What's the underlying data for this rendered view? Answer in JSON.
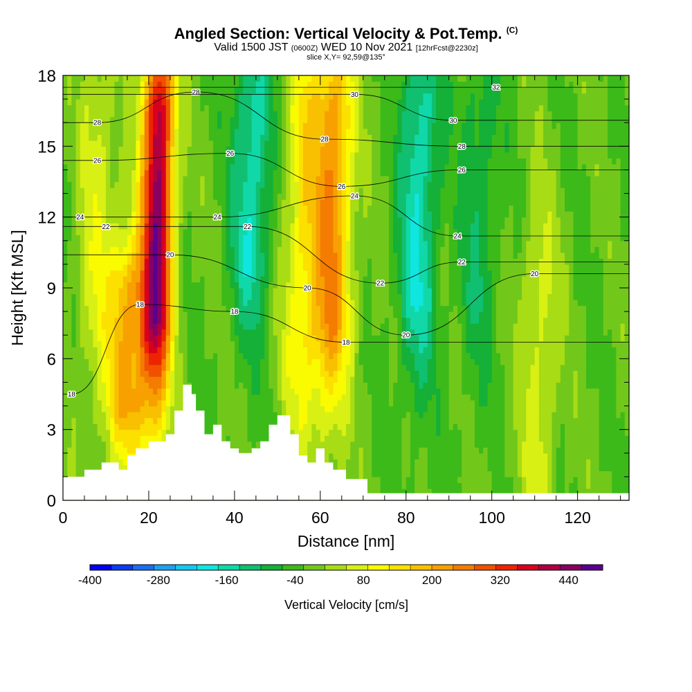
{
  "header": {
    "title": "Angled Section: Vertical Velocity & Pot.Temp.",
    "title_mark": "(C)",
    "valid_a": "Valid 1500 JST",
    "valid_z": "(0600Z)",
    "valid_b": "WED 10 Nov 2021",
    "valid_fcst": "[12hrFcst@2230z]",
    "slice": "slice X,Y= 92,59@135°"
  },
  "chart_data": {
    "type": "heatmap",
    "title": "Angled Section: Vertical Velocity & Pot.Temp.",
    "xlabel": "Distance [nm]",
    "ylabel": "Height [Kft MSL]",
    "xlim": [
      0,
      132
    ],
    "ylim": [
      0,
      18
    ],
    "x_ticks": [
      "0",
      "20",
      "40",
      "60",
      "80",
      "100",
      "120"
    ],
    "y_ticks": [
      "0",
      "3",
      "6",
      "9",
      "12",
      "15",
      "18"
    ],
    "fill_variable": "Vertical Velocity [cm/s]",
    "colorbar": {
      "label": "Vertical Velocity [cm/s]",
      "ticks": [
        "-400",
        "-280",
        "-160",
        "-40",
        "80",
        "200",
        "320",
        "440"
      ],
      "min": -400,
      "max": 500,
      "step": 40,
      "colors": [
        "#0000ee",
        "#0a3cf0",
        "#1a6ef0",
        "#1ea0f0",
        "#14c8f0",
        "#10e6e0",
        "#10d8a8",
        "#10c070",
        "#14b038",
        "#3cba1a",
        "#72c81a",
        "#a8dc14",
        "#d8f014",
        "#fafa00",
        "#fce000",
        "#f8c000",
        "#f8a000",
        "#f47c00",
        "#f05000",
        "#ee2400",
        "#d8001e",
        "#b00040",
        "#880060",
        "#5a0090"
      ]
    },
    "fill_hints": {
      "updraft_cores": [
        {
          "x": 22,
          "y_range": [
            6,
            18
          ],
          "peak_cm_s": 480
        },
        {
          "x": 15,
          "y_range": [
            3,
            10
          ],
          "peak_cm_s": 230
        },
        {
          "x": 63,
          "y_range": [
            6,
            18
          ],
          "peak_cm_s": 260
        },
        {
          "x": 56,
          "y_range": [
            5,
            18
          ],
          "peak_cm_s": 150
        },
        {
          "x": 8,
          "y_range": [
            6,
            18
          ],
          "peak_cm_s": 90
        },
        {
          "x": 111,
          "y_range": [
            0,
            11
          ],
          "peak_cm_s": 90
        }
      ],
      "downdraft_cores": [
        {
          "x": 44,
          "y_range": [
            9,
            18
          ],
          "peak_cm_s": -160
        },
        {
          "x": 83,
          "y_range": [
            7,
            18
          ],
          "peak_cm_s": -160
        },
        {
          "x": 97,
          "y_range": [
            7,
            18
          ],
          "peak_cm_s": -80
        }
      ]
    },
    "contour_variable": "Potential Temperature (C)",
    "contour_levels": [
      {
        "theta": 18,
        "label_at": [
          [
            2,
            4.5
          ],
          [
            18,
            8.3
          ],
          [
            40,
            8.0
          ],
          [
            66,
            6.7
          ]
        ]
      },
      {
        "theta": 20,
        "label_at": [
          [
            25,
            10.4
          ],
          [
            57,
            9.0
          ],
          [
            80,
            7.0
          ],
          [
            110,
            9.6
          ]
        ]
      },
      {
        "theta": 22,
        "label_at": [
          [
            10,
            11.6
          ],
          [
            43,
            11.6
          ],
          [
            74,
            9.2
          ],
          [
            93,
            10.1
          ]
        ]
      },
      {
        "theta": 24,
        "label_at": [
          [
            4,
            12.0
          ],
          [
            36,
            12.0
          ],
          [
            68,
            12.9
          ],
          [
            92,
            11.2
          ]
        ]
      },
      {
        "theta": 26,
        "label_at": [
          [
            8,
            14.4
          ],
          [
            39,
            14.7
          ],
          [
            65,
            13.3
          ],
          [
            93,
            14.0
          ]
        ]
      },
      {
        "theta": 28,
        "label_at": [
          [
            8,
            16.0
          ],
          [
            31,
            17.3
          ],
          [
            61,
            15.3
          ],
          [
            93,
            15.0
          ]
        ]
      },
      {
        "theta": 30,
        "label_at": [
          [
            68,
            17.2
          ],
          [
            91,
            16.1
          ]
        ]
      },
      {
        "theta": 32,
        "label_at": [
          [
            101,
            17.5
          ]
        ]
      }
    ],
    "terrain_outline": [
      [
        0,
        1
      ],
      [
        5,
        1
      ],
      [
        5,
        1.3
      ],
      [
        9,
        1.3
      ],
      [
        9,
        1.6
      ],
      [
        13,
        1.6
      ],
      [
        13,
        1.3
      ],
      [
        15,
        1.3
      ],
      [
        15,
        1.9
      ],
      [
        17,
        1.9
      ],
      [
        17,
        2.2
      ],
      [
        20,
        2.2
      ],
      [
        20,
        2.5
      ],
      [
        24,
        2.5
      ],
      [
        24,
        2.8
      ],
      [
        26,
        2.8
      ],
      [
        26,
        3.8
      ],
      [
        28,
        3.8
      ],
      [
        28,
        4.9
      ],
      [
        30,
        4.9
      ],
      [
        30,
        4.5
      ],
      [
        31,
        4.5
      ],
      [
        31,
        3.8
      ],
      [
        33,
        3.8
      ],
      [
        33,
        2.8
      ],
      [
        35,
        2.8
      ],
      [
        35,
        3.2
      ],
      [
        37,
        3.2
      ],
      [
        37,
        2.5
      ],
      [
        39,
        2.5
      ],
      [
        39,
        2.2
      ],
      [
        41,
        2.2
      ],
      [
        41,
        2.0
      ],
      [
        44,
        2.0
      ],
      [
        44,
        2.2
      ],
      [
        46,
        2.2
      ],
      [
        46,
        2.5
      ],
      [
        48,
        2.5
      ],
      [
        48,
        3.2
      ],
      [
        50,
        3.2
      ],
      [
        50,
        3.6
      ],
      [
        53,
        3.6
      ],
      [
        53,
        2.8
      ],
      [
        55,
        2.8
      ],
      [
        55,
        1.9
      ],
      [
        57,
        1.9
      ],
      [
        57,
        1.6
      ],
      [
        59,
        1.6
      ],
      [
        59,
        2.2
      ],
      [
        61,
        2.2
      ],
      [
        61,
        1.6
      ],
      [
        63,
        1.6
      ],
      [
        63,
        1.3
      ],
      [
        66,
        1.3
      ],
      [
        66,
        0.9
      ],
      [
        71,
        0.9
      ],
      [
        71,
        0.3
      ],
      [
        132,
        0.3
      ]
    ]
  }
}
